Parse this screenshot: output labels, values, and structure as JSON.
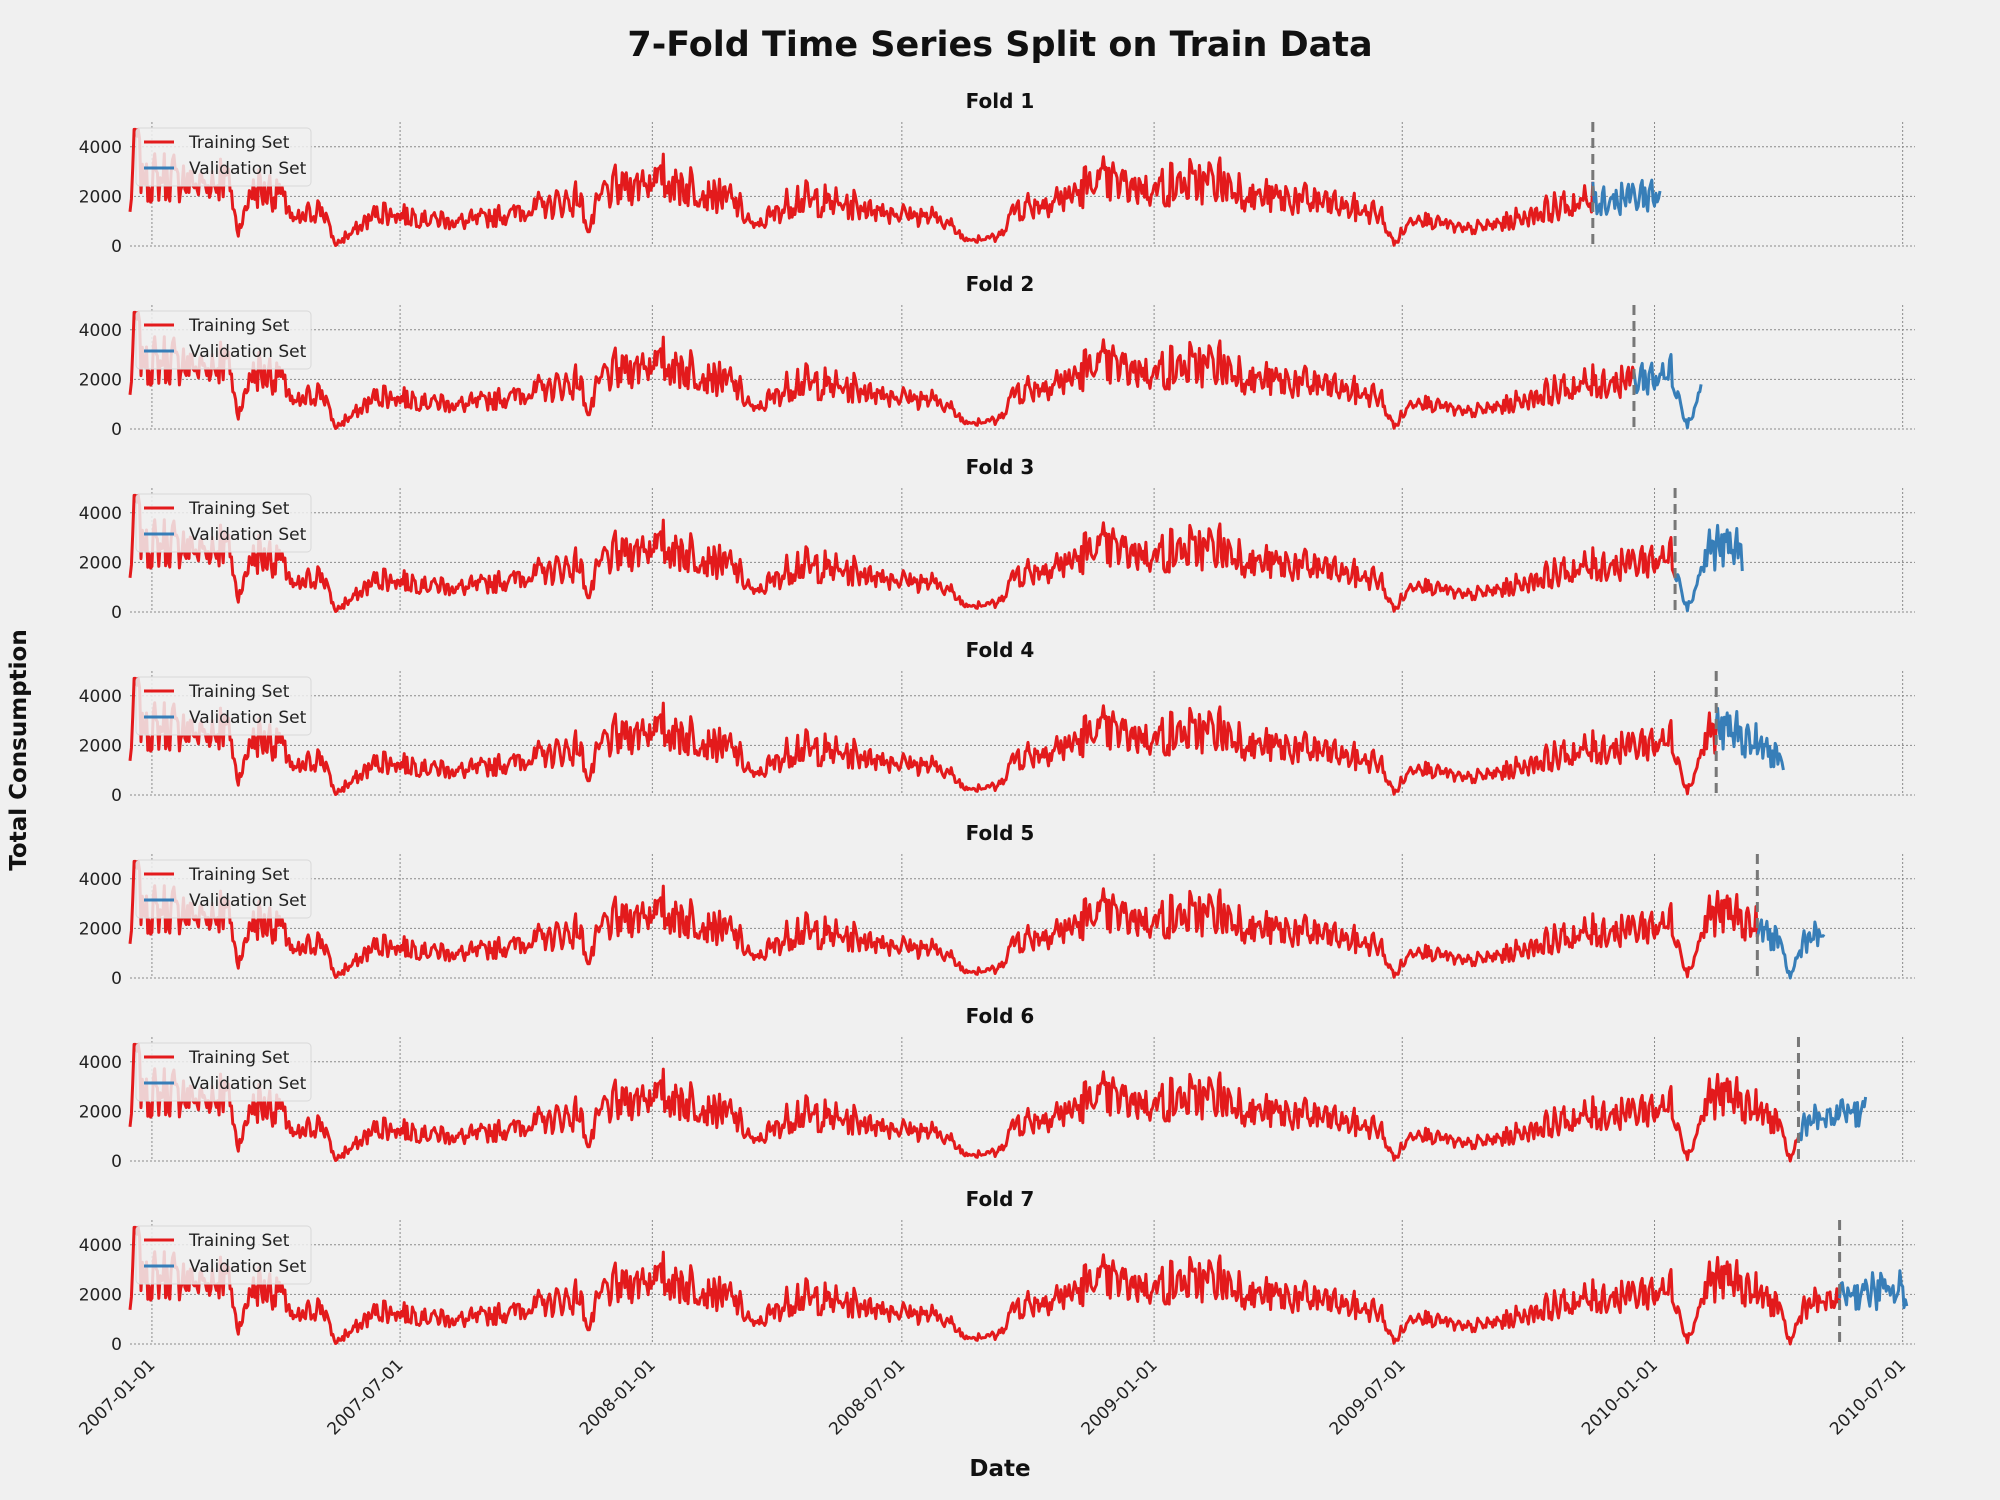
{
  "chart_data": {
    "type": "line",
    "title": "7-Fold Time Series Split on Train Data",
    "xlabel": "Date",
    "ylabel": "Total Consumption",
    "x_range": [
      "2006-12-16",
      "2010-07-10"
    ],
    "ylim": [
      0,
      5000
    ],
    "yticks": [
      0,
      2000,
      4000
    ],
    "xticks": [
      "2007-01-01",
      "2007-07-01",
      "2008-01-01",
      "2008-07-01",
      "2009-01-01",
      "2009-07-01",
      "2010-01-01",
      "2010-07-01"
    ],
    "grid": true,
    "legend_placement": "top-left",
    "colors": {
      "training": "#e31a1c",
      "validation": "#377eb8",
      "split": "#777777"
    },
    "series_names": {
      "training": "Training Set",
      "validation": "Validation Set"
    },
    "train_start": "2006-12-16",
    "daily_series": [
      {
        "x": "2006-12-16",
        "y": 1300
      },
      {
        "x": "2006-12-20",
        "y": 4800
      },
      {
        "x": "2006-12-25",
        "y": 2500
      },
      {
        "x": "2007-01-15",
        "y": 2600
      },
      {
        "x": "2007-02-10",
        "y": 2300
      },
      {
        "x": "2007-02-25",
        "y": 2700
      },
      {
        "x": "2007-03-05",
        "y": 520
      },
      {
        "x": "2007-03-15",
        "y": 2200
      },
      {
        "x": "2007-04-05",
        "y": 2000
      },
      {
        "x": "2007-04-15",
        "y": 900
      },
      {
        "x": "2007-05-05",
        "y": 1500
      },
      {
        "x": "2007-05-15",
        "y": 20
      },
      {
        "x": "2007-06-15",
        "y": 1300
      },
      {
        "x": "2007-08-15",
        "y": 900
      },
      {
        "x": "2007-09-15",
        "y": 1200
      },
      {
        "x": "2007-10-15",
        "y": 1550
      },
      {
        "x": "2007-11-10",
        "y": 1800
      },
      {
        "x": "2007-11-15",
        "y": 500
      },
      {
        "x": "2007-11-25",
        "y": 2000
      },
      {
        "x": "2008-01-01",
        "y": 2600
      },
      {
        "x": "2008-02-15",
        "y": 2000
      },
      {
        "x": "2008-03-01",
        "y": 1700
      },
      {
        "x": "2008-03-15",
        "y": 700
      },
      {
        "x": "2008-04-15",
        "y": 1800
      },
      {
        "x": "2008-06-01",
        "y": 1500
      },
      {
        "x": "2008-08-01",
        "y": 1000
      },
      {
        "x": "2008-08-15",
        "y": 300
      },
      {
        "x": "2008-09-10",
        "y": 300
      },
      {
        "x": "2008-09-20",
        "y": 1400
      },
      {
        "x": "2008-11-01",
        "y": 1900
      },
      {
        "x": "2008-11-20",
        "y": 2500
      },
      {
        "x": "2009-01-01",
        "y": 2200
      },
      {
        "x": "2009-02-15",
        "y": 2500
      },
      {
        "x": "2009-03-15",
        "y": 1900
      },
      {
        "x": "2009-05-01",
        "y": 1700
      },
      {
        "x": "2009-06-15",
        "y": 1200
      },
      {
        "x": "2009-06-25",
        "y": 30
      },
      {
        "x": "2009-07-10",
        "y": 1200
      },
      {
        "x": "2009-08-15",
        "y": 600
      },
      {
        "x": "2009-09-15",
        "y": 900
      },
      {
        "x": "2009-10-15",
        "y": 1400
      },
      {
        "x": "2009-11-15",
        "y": 1700
      },
      {
        "x": "2009-12-15",
        "y": 1900
      },
      {
        "x": "2010-01-15",
        "y": 2100
      },
      {
        "x": "2010-01-25",
        "y": 50
      },
      {
        "x": "2010-02-10",
        "y": 2500
      },
      {
        "x": "2010-03-01",
        "y": 2400
      },
      {
        "x": "2010-03-20",
        "y": 1800
      },
      {
        "x": "2010-04-01",
        "y": 1500
      },
      {
        "x": "2010-04-10",
        "y": 0
      },
      {
        "x": "2010-04-20",
        "y": 1500
      },
      {
        "x": "2010-05-10",
        "y": 1600
      },
      {
        "x": "2010-05-20",
        "y": 2000
      }
    ],
    "folds": [
      {
        "title": "Fold 1",
        "train_end": "2009-11-17",
        "val_end": "2010-01-05"
      },
      {
        "title": "Fold 2",
        "train_end": "2009-12-17",
        "val_end": "2010-02-04"
      },
      {
        "title": "Fold 3",
        "train_end": "2010-01-16",
        "val_end": "2010-03-06"
      },
      {
        "title": "Fold 4",
        "train_end": "2010-02-15",
        "val_end": "2010-04-05"
      },
      {
        "title": "Fold 5",
        "train_end": "2010-03-17",
        "val_end": "2010-05-05"
      },
      {
        "title": "Fold 6",
        "train_end": "2010-04-16",
        "val_end": "2010-06-04"
      },
      {
        "title": "Fold 7",
        "train_end": "2010-05-16",
        "val_end": "2010-07-04"
      }
    ]
  }
}
